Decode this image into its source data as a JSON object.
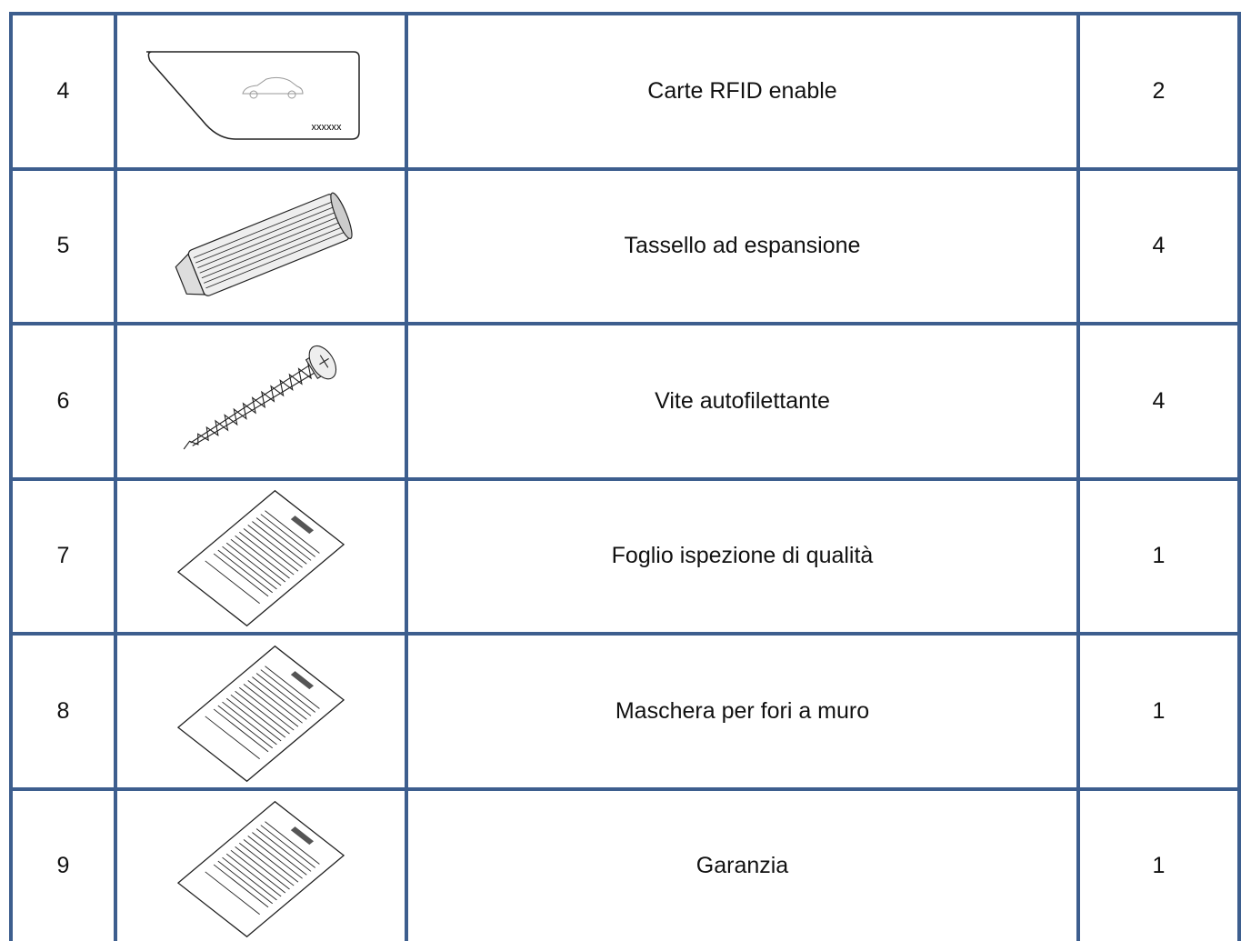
{
  "table": {
    "rows": [
      {
        "number": 4,
        "card_label": "xxxxxx",
        "description": "Carte RFID enable",
        "quantity": 2
      },
      {
        "number": 5,
        "description": "Tassello ad espansione",
        "quantity": 4
      },
      {
        "number": 6,
        "description": "Vite autofilettante",
        "quantity": 4
      },
      {
        "number": 7,
        "description": "Foglio ispezione di qualità",
        "quantity": 1
      },
      {
        "number": 8,
        "description": "Maschera per fori a muro",
        "quantity": 1
      },
      {
        "number": 9,
        "description": "Garanzia",
        "quantity": 1
      }
    ]
  }
}
